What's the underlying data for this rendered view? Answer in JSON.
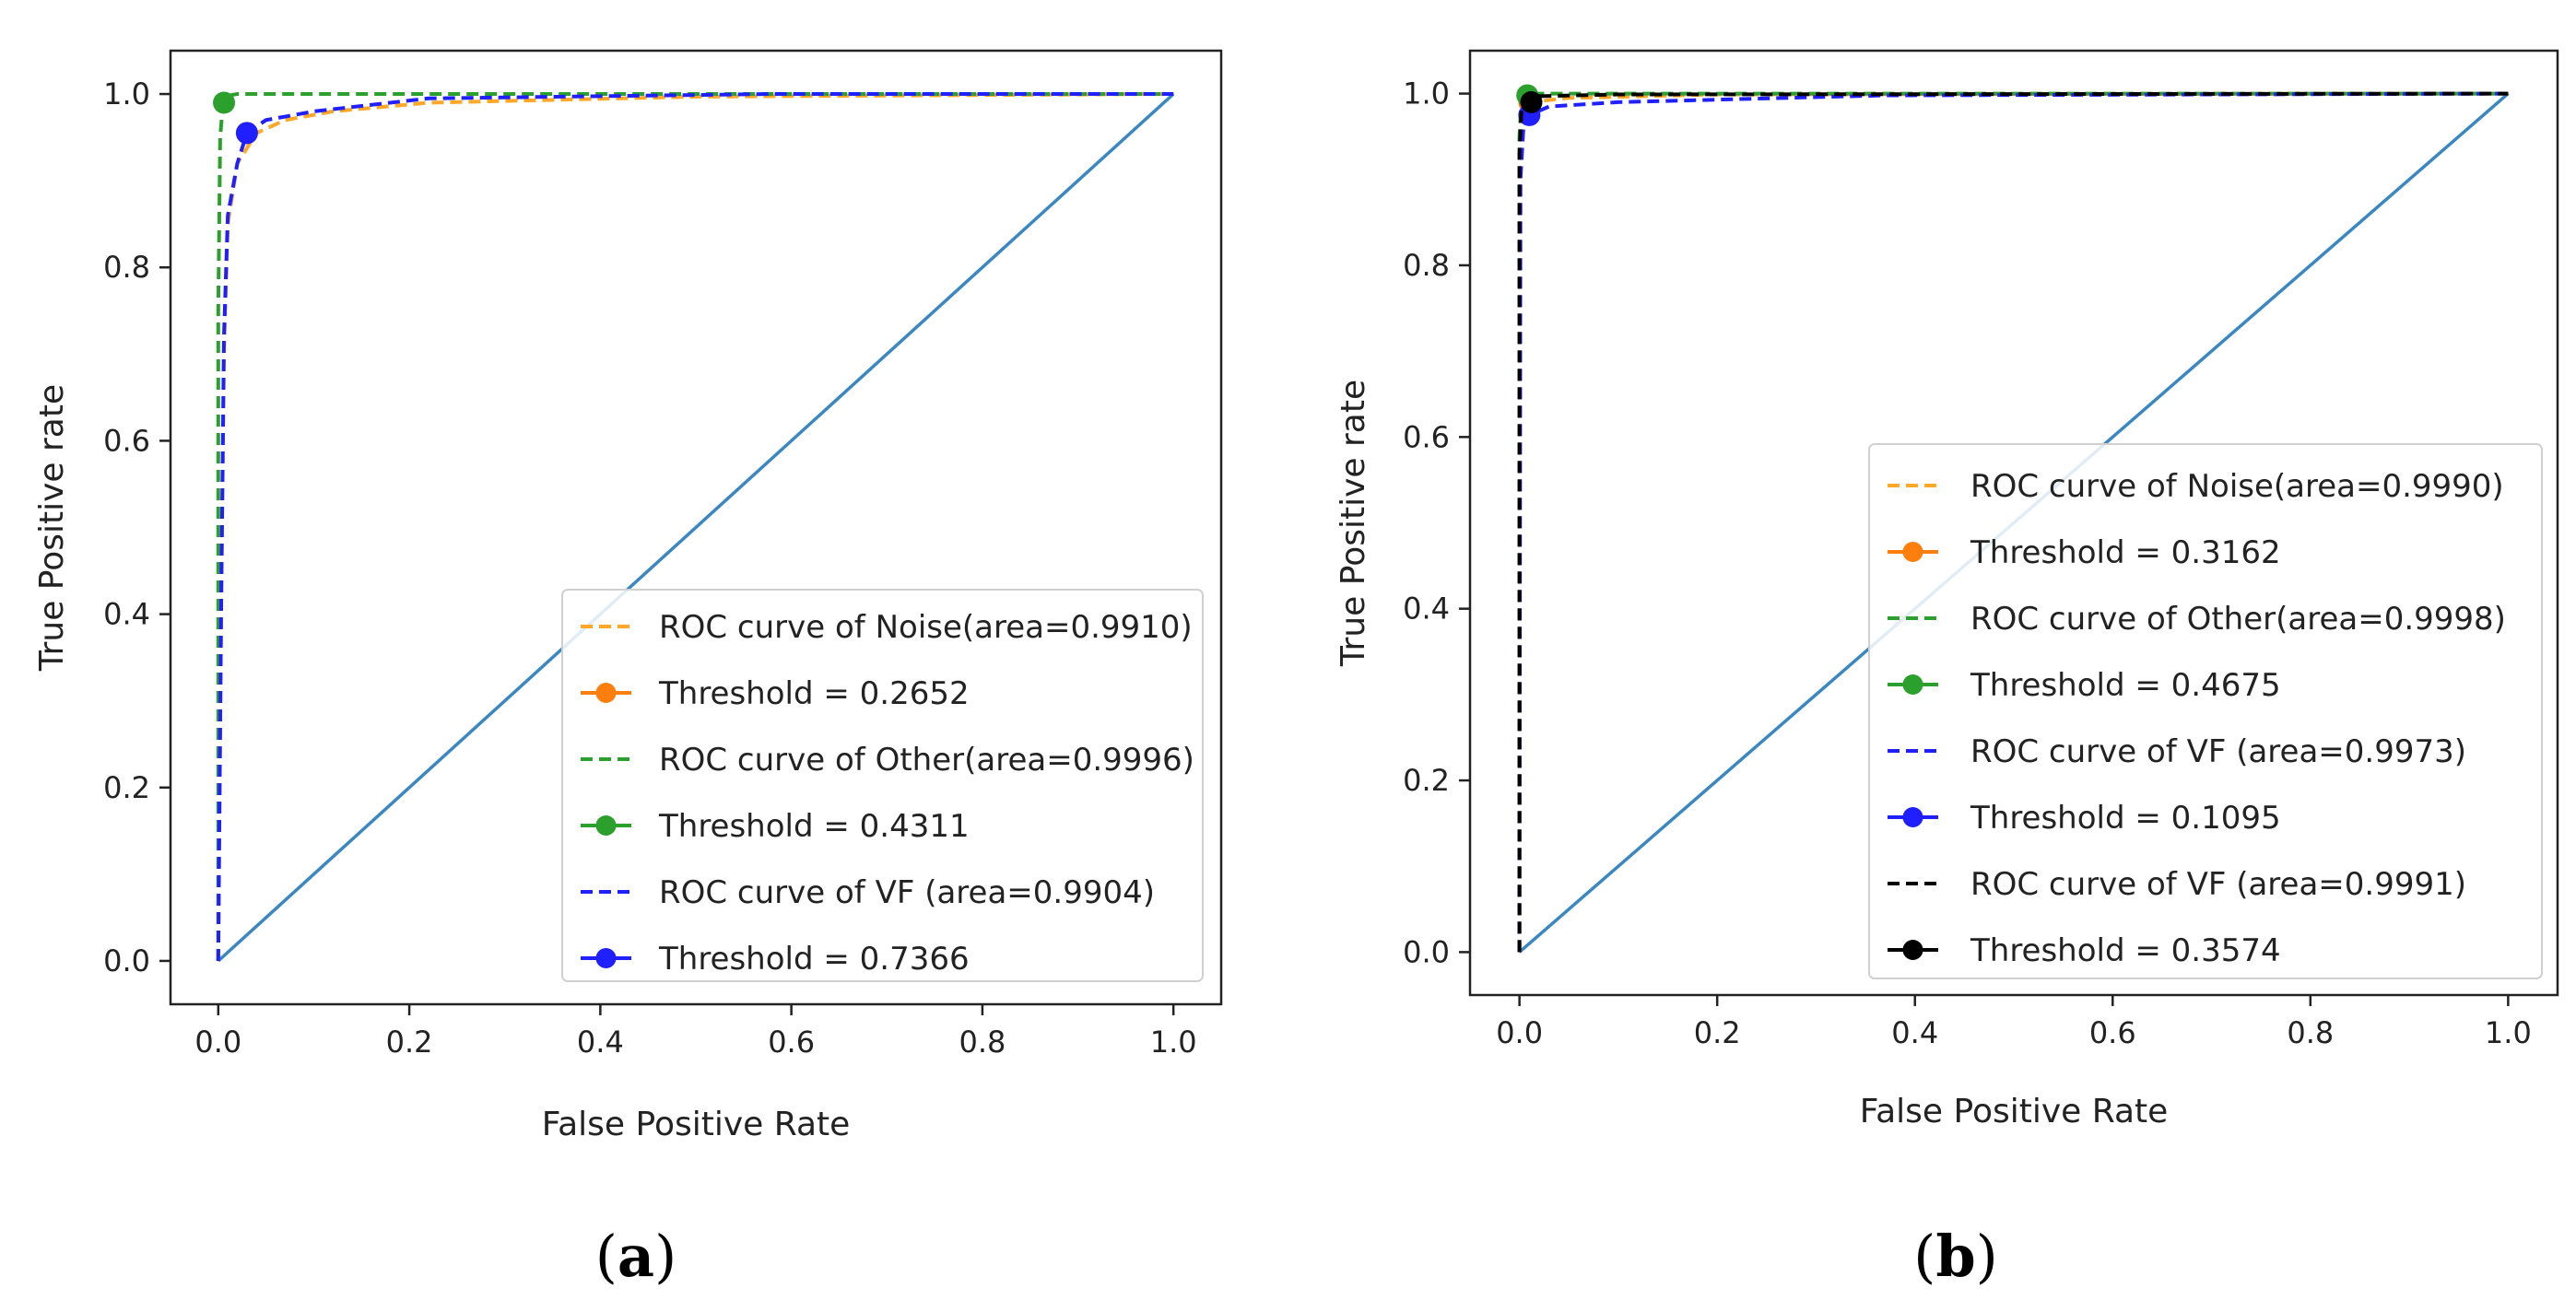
{
  "chart_data": [
    {
      "type": "line",
      "panel_label": "a",
      "xlabel": "False Positive Rate",
      "ylabel": "True Positive rate",
      "xlim": [
        -0.05,
        1.05
      ],
      "ylim": [
        -0.05,
        1.05
      ],
      "xticks": [
        "0.0",
        "0.2",
        "0.4",
        "0.6",
        "0.8",
        "1.0"
      ],
      "yticks": [
        "0.0",
        "0.2",
        "0.4",
        "0.6",
        "0.8",
        "1.0"
      ],
      "legend_position": "lower-right",
      "series": [
        {
          "name": "chance",
          "legend": false,
          "color": "#3a87c2",
          "style": "solid",
          "x": [
            0,
            1
          ],
          "y": [
            0,
            1
          ]
        },
        {
          "name": "ROC curve of Noise(area=0.9910)",
          "color": "#ffa726",
          "style": "dashed",
          "x": [
            0,
            0.003,
            0.006,
            0.01,
            0.02,
            0.04,
            0.07,
            0.12,
            0.22,
            0.5,
            1.0
          ],
          "y": [
            0,
            0.4,
            0.7,
            0.85,
            0.92,
            0.955,
            0.97,
            0.98,
            0.99,
            0.997,
            1.0
          ]
        },
        {
          "name": "Threshold = 0.2652",
          "color": "#ff7f0e",
          "style": "marker",
          "x": [
            0.03
          ],
          "y": [
            0.955
          ]
        },
        {
          "name": "ROC curve of Other(area=0.9996)",
          "color": "#2ca02c",
          "style": "dashed",
          "x": [
            0,
            0.0,
            0.002,
            0.005,
            0.01,
            0.02,
            0.05,
            1.0
          ],
          "y": [
            0,
            0.75,
            0.95,
            0.99,
            0.998,
            1.0,
            1.0,
            1.0
          ]
        },
        {
          "name": "Threshold = 0.4311",
          "color": "#2ca02c",
          "style": "marker",
          "x": [
            0.006
          ],
          "y": [
            0.99
          ]
        },
        {
          "name": "ROC curve of VF (area=0.9904)",
          "color": "#1f1fff",
          "style": "dashed",
          "x": [
            0,
            0.003,
            0.006,
            0.01,
            0.02,
            0.03,
            0.05,
            0.1,
            0.22,
            0.58,
            1.0
          ],
          "y": [
            0,
            0.4,
            0.72,
            0.86,
            0.92,
            0.955,
            0.97,
            0.98,
            0.995,
            1.0,
            1.0
          ]
        },
        {
          "name": "Threshold = 0.7366",
          "color": "#1f1fff",
          "style": "marker",
          "x": [
            0.03
          ],
          "y": [
            0.955
          ]
        }
      ]
    },
    {
      "type": "line",
      "panel_label": "b",
      "xlabel": "False Positive Rate",
      "ylabel": "True Positive rate",
      "xlim": [
        -0.05,
        1.05
      ],
      "ylim": [
        -0.05,
        1.05
      ],
      "xticks": [
        "0.0",
        "0.2",
        "0.4",
        "0.6",
        "0.8",
        "1.0"
      ],
      "yticks": [
        "0.0",
        "0.2",
        "0.4",
        "0.6",
        "0.8",
        "1.0"
      ],
      "legend_position": "lower-right",
      "series": [
        {
          "name": "chance",
          "legend": false,
          "color": "#3a87c2",
          "style": "solid",
          "x": [
            0,
            1
          ],
          "y": [
            0,
            1
          ]
        },
        {
          "name": "ROC curve of Noise(area=0.9990)",
          "color": "#ffa726",
          "style": "dashed",
          "x": [
            0,
            0.001,
            0.004,
            0.01,
            0.05,
            0.2,
            1.0
          ],
          "y": [
            0,
            0.9,
            0.975,
            0.99,
            0.995,
            0.999,
            1.0
          ]
        },
        {
          "name": "Threshold = 0.3162",
          "color": "#ff7f0e",
          "style": "marker",
          "x": [
            0.01
          ],
          "y": [
            0.99
          ]
        },
        {
          "name": "ROC curve of Other(area=0.9998)",
          "color": "#2ca02c",
          "style": "dashed",
          "x": [
            0,
            0.0,
            0.002,
            0.01,
            0.05,
            1.0
          ],
          "y": [
            0,
            0.95,
            0.995,
            1.0,
            1.0,
            1.0
          ]
        },
        {
          "name": "Threshold = 0.4675",
          "color": "#2ca02c",
          "style": "marker",
          "x": [
            0.008
          ],
          "y": [
            0.998
          ]
        },
        {
          "name": "ROC curve of VF (area=0.9973)",
          "color": "#1f1fff",
          "style": "dashed",
          "x": [
            0,
            0.001,
            0.004,
            0.01,
            0.03,
            0.1,
            0.37,
            1.0
          ],
          "y": [
            0,
            0.9,
            0.96,
            0.975,
            0.985,
            0.99,
            0.998,
            1.0
          ]
        },
        {
          "name": "Threshold = 0.1095",
          "color": "#1f1fff",
          "style": "marker",
          "x": [
            0.01
          ],
          "y": [
            0.975
          ]
        },
        {
          "name": "ROC curve of VF (area=0.9991)",
          "color": "#000000",
          "style": "dashed",
          "x": [
            0,
            0.0,
            0.002,
            0.006,
            0.02,
            0.1,
            1.0
          ],
          "y": [
            0,
            0.93,
            0.98,
            0.99,
            0.997,
            0.999,
            1.0
          ]
        },
        {
          "name": "Threshold = 0.3574",
          "color": "#000000",
          "style": "marker",
          "x": [
            0.012
          ],
          "y": [
            0.99
          ]
        }
      ]
    }
  ]
}
